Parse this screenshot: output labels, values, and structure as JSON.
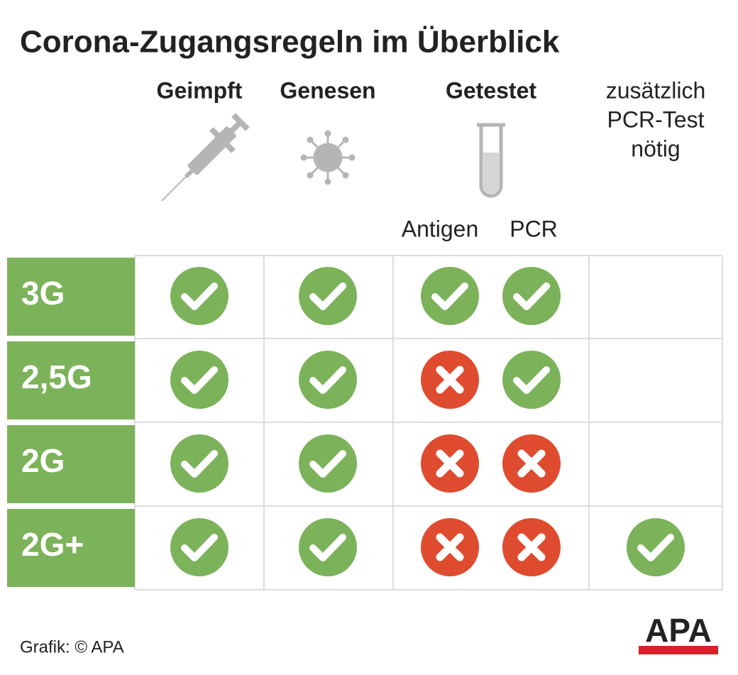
{
  "title": "Corona-Zugangsregeln im Überblick",
  "columns": [
    "Geimpft",
    "Genesen",
    "Getestet"
  ],
  "extra_column": [
    "zusätzlich",
    "PCR-Test",
    "nötig"
  ],
  "test_types": [
    "Antigen",
    "PCR"
  ],
  "rows": [
    {
      "label": "3G",
      "cells": [
        true,
        true,
        true,
        true,
        null
      ]
    },
    {
      "label": "2,5G",
      "cells": [
        true,
        true,
        false,
        true,
        null
      ]
    },
    {
      "label": "2G",
      "cells": [
        true,
        true,
        false,
        false,
        null
      ]
    },
    {
      "label": "2G+",
      "cells": [
        true,
        true,
        false,
        false,
        true
      ]
    }
  ],
  "footer": "Grafik: © APA",
  "logo": "APA"
}
